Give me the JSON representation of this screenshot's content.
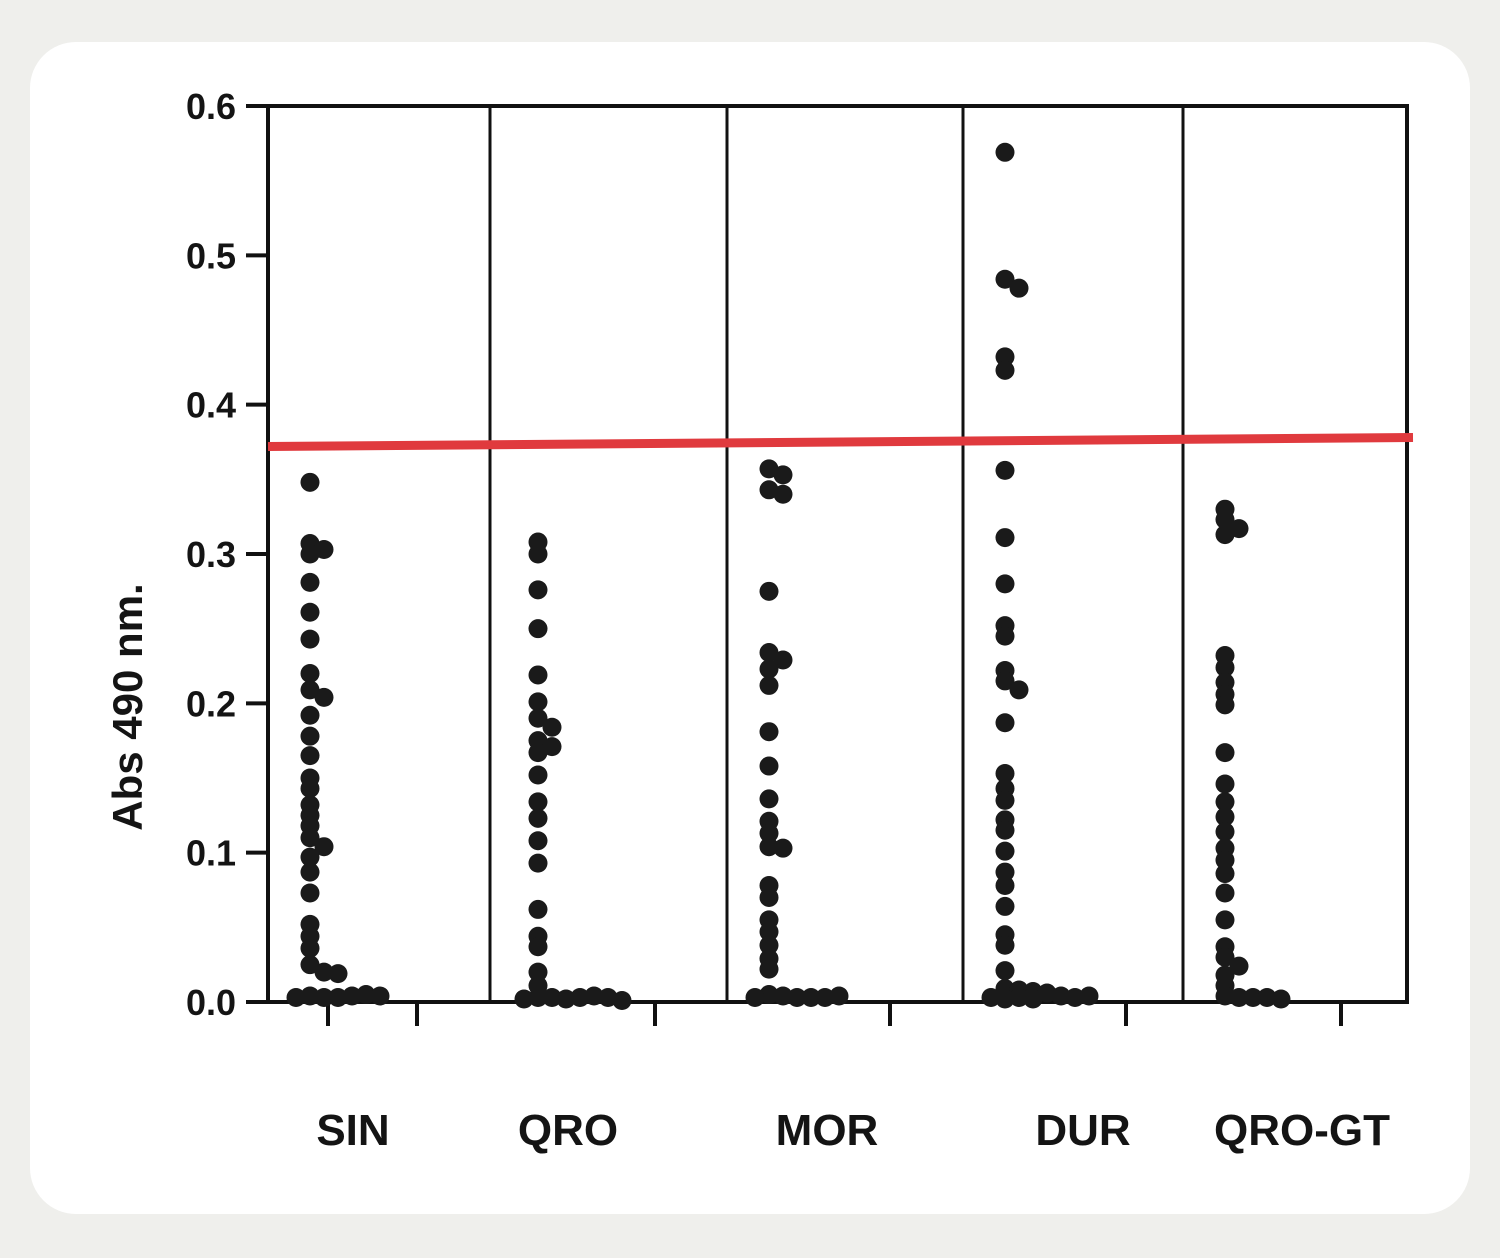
{
  "chart_data": {
    "type": "scatter",
    "title": "",
    "xlabel": "",
    "ylabel": "Abs 490 nm.",
    "ylim": [
      0,
      0.6
    ],
    "yticks": [
      "0.0",
      "0.1",
      "0.2",
      "0.3",
      "0.4",
      "0.5",
      "0.6"
    ],
    "grid": false,
    "categories": [
      "SIN",
      "QRO",
      "MOR",
      "DUR",
      "QRO-GT"
    ],
    "threshold": {
      "y_start": 0.372,
      "y_end": 0.378,
      "color": "#e03a3e"
    },
    "marker_color": "#1a1a1a",
    "series": [
      {
        "category": "SIN",
        "values": [
          0.348,
          0.307,
          0.303,
          0.3,
          0.281,
          0.261,
          0.243,
          0.22,
          0.209,
          0.204,
          0.192,
          0.178,
          0.165,
          0.15,
          0.143,
          0.132,
          0.125,
          0.118,
          0.11,
          0.104,
          0.097,
          0.087,
          0.073,
          0.052,
          0.044,
          0.036,
          0.025,
          0.02,
          0.019,
          0.004,
          0.003,
          0.003,
          0.004,
          0.005,
          0.004,
          0.003
        ]
      },
      {
        "category": "QRO",
        "values": [
          0.308,
          0.3,
          0.276,
          0.25,
          0.219,
          0.201,
          0.19,
          0.184,
          0.175,
          0.171,
          0.167,
          0.152,
          0.134,
          0.123,
          0.108,
          0.093,
          0.062,
          0.044,
          0.037,
          0.02,
          0.011,
          0.003,
          0.003,
          0.002,
          0.003,
          0.004,
          0.003,
          0.002,
          0.001
        ]
      },
      {
        "category": "MOR",
        "values": [
          0.357,
          0.353,
          0.343,
          0.34,
          0.275,
          0.234,
          0.229,
          0.223,
          0.212,
          0.181,
          0.158,
          0.136,
          0.121,
          0.113,
          0.104,
          0.103,
          0.078,
          0.07,
          0.055,
          0.047,
          0.038,
          0.029,
          0.022,
          0.005,
          0.004,
          0.003,
          0.003,
          0.003,
          0.004,
          0.003
        ]
      },
      {
        "category": "DUR",
        "values": [
          0.569,
          0.484,
          0.478,
          0.432,
          0.423,
          0.356,
          0.311,
          0.28,
          0.252,
          0.245,
          0.222,
          0.215,
          0.209,
          0.187,
          0.153,
          0.143,
          0.135,
          0.122,
          0.115,
          0.101,
          0.087,
          0.078,
          0.064,
          0.045,
          0.038,
          0.021,
          0.009,
          0.008,
          0.007,
          0.006,
          0.004,
          0.003,
          0.003,
          0.004,
          0.004,
          0.003,
          0.002,
          0.002
        ]
      },
      {
        "category": "QRO-GT",
        "values": [
          0.33,
          0.323,
          0.317,
          0.313,
          0.232,
          0.224,
          0.214,
          0.206,
          0.199,
          0.167,
          0.146,
          0.134,
          0.124,
          0.114,
          0.103,
          0.095,
          0.086,
          0.073,
          0.055,
          0.037,
          0.03,
          0.024,
          0.018,
          0.011,
          0.004,
          0.003,
          0.003,
          0.003,
          0.002
        ]
      }
    ]
  }
}
